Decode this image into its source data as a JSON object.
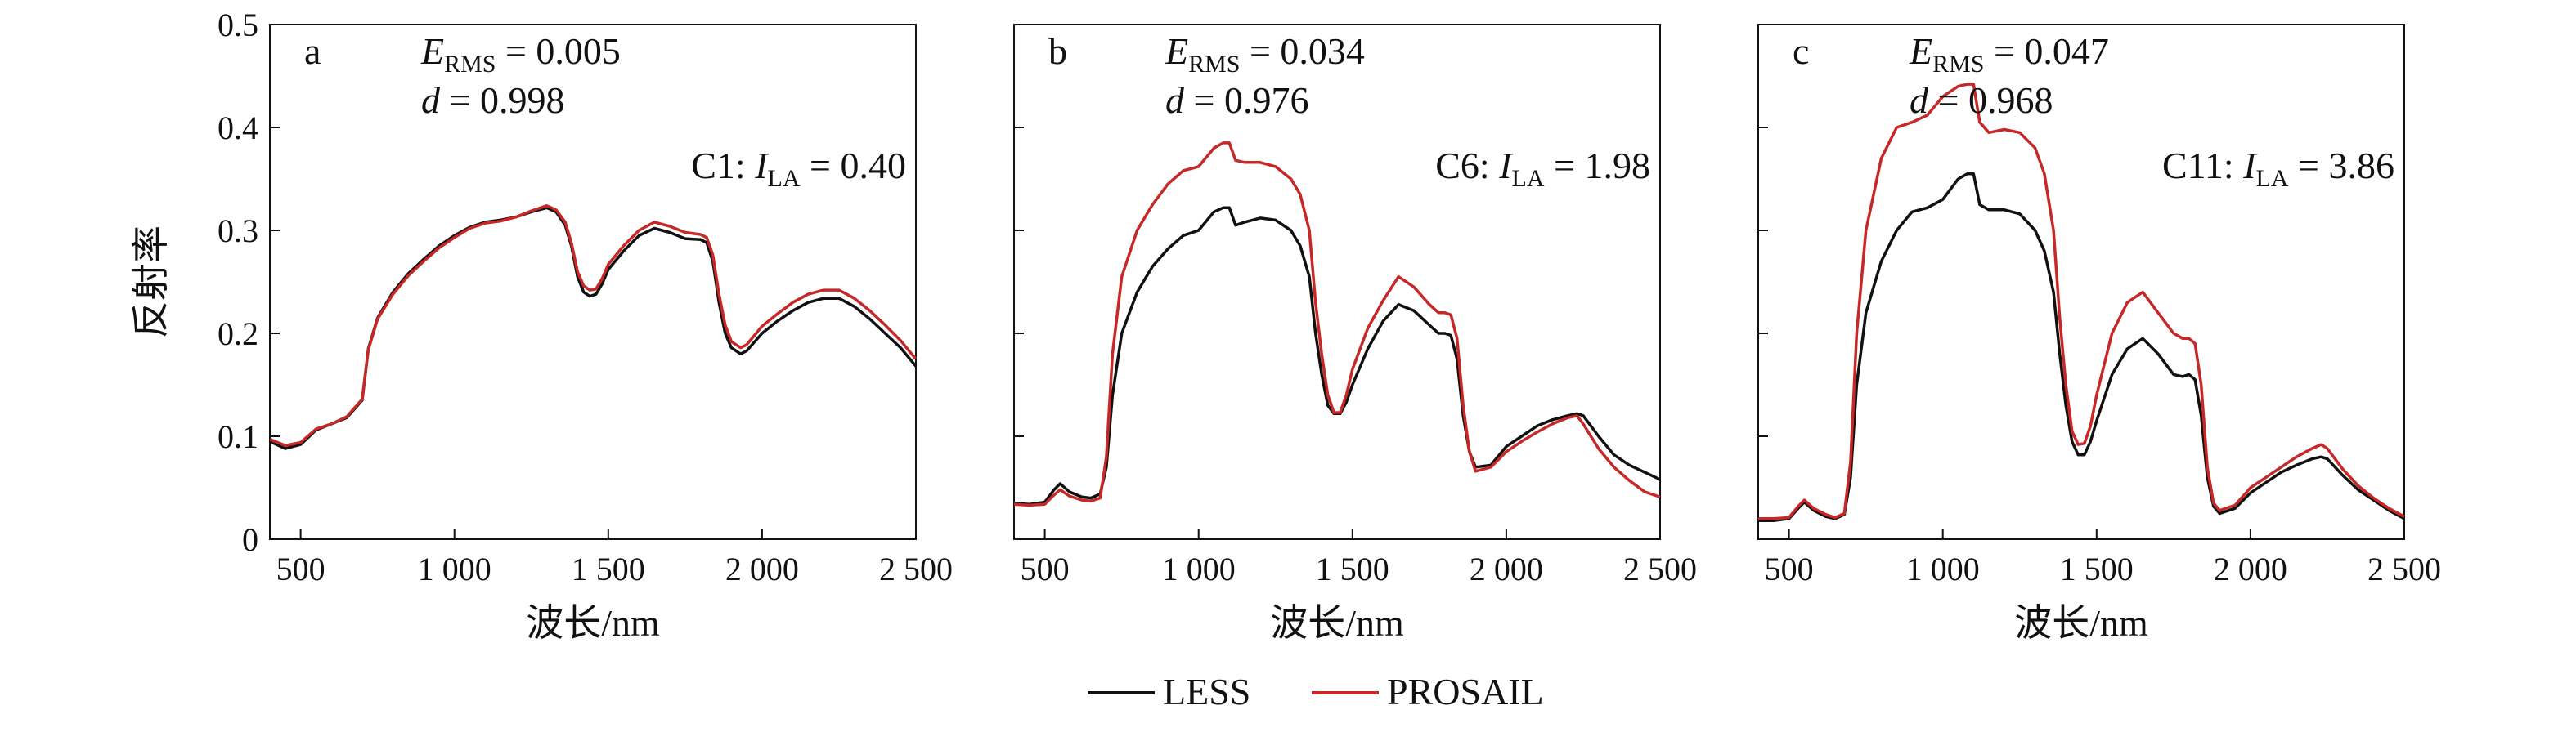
{
  "chart_data": [
    {
      "type": "line",
      "panel_label": "a",
      "xlabel": "波长/nm",
      "ylabel": "反射率",
      "xlim": [
        400,
        2500
      ],
      "ylim": [
        0,
        0.5
      ],
      "xticks": [
        500,
        1000,
        1500,
        2000,
        2500
      ],
      "xtick_labels": [
        "500",
        "1 000",
        "1 500",
        "2 000",
        "2 500"
      ],
      "yticks": [
        0,
        0.1,
        0.2,
        0.3,
        0.4,
        0.5
      ],
      "ytick_labels": [
        "0",
        "0.1",
        "0.2",
        "0.3",
        "0.4",
        "0.5"
      ],
      "grid": false,
      "annotations": {
        "erms_sym": "E",
        "erms_sub": "RMS",
        "erms_value": " = 0.005",
        "d_sym": "d",
        "d_value": " = 0.998",
        "case_prefix": "C1: ",
        "ila_sym": "I",
        "ila_sub": "LA",
        "ila_value": " = 0.40"
      },
      "x": [
        400,
        450,
        500,
        550,
        600,
        650,
        700,
        720,
        750,
        800,
        850,
        900,
        950,
        1000,
        1050,
        1100,
        1150,
        1200,
        1250,
        1300,
        1330,
        1360,
        1380,
        1400,
        1420,
        1440,
        1460,
        1480,
        1500,
        1550,
        1600,
        1650,
        1700,
        1750,
        1800,
        1820,
        1840,
        1860,
        1880,
        1900,
        1930,
        1950,
        2000,
        2050,
        2100,
        2150,
        2200,
        2250,
        2300,
        2350,
        2400,
        2450,
        2500
      ],
      "series": [
        {
          "name": "LESS",
          "color": "#111111",
          "values": [
            0.095,
            0.088,
            0.092,
            0.106,
            0.112,
            0.118,
            0.135,
            0.185,
            0.215,
            0.24,
            0.258,
            0.272,
            0.285,
            0.295,
            0.303,
            0.308,
            0.31,
            0.313,
            0.318,
            0.322,
            0.318,
            0.305,
            0.285,
            0.255,
            0.24,
            0.236,
            0.238,
            0.248,
            0.262,
            0.28,
            0.295,
            0.302,
            0.298,
            0.292,
            0.291,
            0.288,
            0.27,
            0.23,
            0.2,
            0.186,
            0.18,
            0.183,
            0.2,
            0.212,
            0.222,
            0.23,
            0.234,
            0.234,
            0.226,
            0.214,
            0.2,
            0.186,
            0.168
          ]
        },
        {
          "name": "PROSAIL",
          "color": "#c62828",
          "values": [
            0.097,
            0.091,
            0.094,
            0.107,
            0.112,
            0.119,
            0.136,
            0.184,
            0.214,
            0.238,
            0.256,
            0.27,
            0.283,
            0.293,
            0.302,
            0.307,
            0.309,
            0.313,
            0.319,
            0.324,
            0.32,
            0.308,
            0.288,
            0.26,
            0.246,
            0.242,
            0.243,
            0.253,
            0.267,
            0.285,
            0.3,
            0.308,
            0.304,
            0.298,
            0.296,
            0.293,
            0.276,
            0.238,
            0.208,
            0.192,
            0.186,
            0.189,
            0.207,
            0.219,
            0.23,
            0.238,
            0.242,
            0.242,
            0.234,
            0.222,
            0.208,
            0.193,
            0.175
          ]
        }
      ]
    },
    {
      "type": "line",
      "panel_label": "b",
      "xlabel": "波长/nm",
      "ylabel": "",
      "xlim": [
        400,
        2500
      ],
      "ylim": [
        0,
        0.5
      ],
      "xticks": [
        500,
        1000,
        1500,
        2000,
        2500
      ],
      "xtick_labels": [
        "500",
        "1 000",
        "1 500",
        "2 000",
        "2 500"
      ],
      "yticks": [
        0,
        0.1,
        0.2,
        0.3,
        0.4,
        0.5
      ],
      "ytick_labels": [],
      "grid": false,
      "annotations": {
        "erms_sym": "E",
        "erms_sub": "RMS",
        "erms_value": " = 0.034",
        "d_sym": "d",
        "d_value": " = 0.976",
        "case_prefix": "C6: ",
        "ila_sym": "I",
        "ila_sub": "LA",
        "ila_value": " = 1.98"
      },
      "x": [
        400,
        450,
        500,
        530,
        550,
        580,
        620,
        650,
        680,
        700,
        720,
        750,
        800,
        850,
        900,
        950,
        1000,
        1050,
        1080,
        1100,
        1120,
        1150,
        1200,
        1250,
        1300,
        1330,
        1360,
        1380,
        1400,
        1420,
        1440,
        1460,
        1480,
        1500,
        1550,
        1600,
        1650,
        1700,
        1750,
        1780,
        1800,
        1820,
        1840,
        1860,
        1880,
        1900,
        1950,
        2000,
        2050,
        2100,
        2150,
        2200,
        2230,
        2250,
        2300,
        2350,
        2400,
        2450,
        2500
      ],
      "series": [
        {
          "name": "LESS",
          "color": "#111111",
          "values": [
            0.035,
            0.034,
            0.036,
            0.048,
            0.054,
            0.046,
            0.041,
            0.04,
            0.044,
            0.07,
            0.14,
            0.2,
            0.24,
            0.265,
            0.282,
            0.295,
            0.3,
            0.318,
            0.322,
            0.322,
            0.305,
            0.308,
            0.312,
            0.31,
            0.3,
            0.285,
            0.255,
            0.2,
            0.16,
            0.13,
            0.122,
            0.122,
            0.133,
            0.15,
            0.185,
            0.212,
            0.228,
            0.222,
            0.208,
            0.2,
            0.2,
            0.198,
            0.175,
            0.12,
            0.085,
            0.07,
            0.072,
            0.09,
            0.1,
            0.11,
            0.116,
            0.12,
            0.122,
            0.12,
            0.1,
            0.082,
            0.072,
            0.065,
            0.058
          ]
        },
        {
          "name": "PROSAIL",
          "color": "#c62828",
          "values": [
            0.034,
            0.033,
            0.034,
            0.043,
            0.048,
            0.042,
            0.038,
            0.037,
            0.04,
            0.08,
            0.18,
            0.255,
            0.3,
            0.325,
            0.345,
            0.358,
            0.362,
            0.38,
            0.385,
            0.385,
            0.368,
            0.366,
            0.366,
            0.362,
            0.35,
            0.335,
            0.3,
            0.23,
            0.18,
            0.14,
            0.123,
            0.123,
            0.14,
            0.165,
            0.205,
            0.232,
            0.255,
            0.245,
            0.228,
            0.22,
            0.22,
            0.218,
            0.195,
            0.13,
            0.085,
            0.066,
            0.07,
            0.085,
            0.095,
            0.104,
            0.112,
            0.118,
            0.12,
            0.112,
            0.088,
            0.07,
            0.057,
            0.046,
            0.041
          ]
        }
      ]
    },
    {
      "type": "line",
      "panel_label": "c",
      "xlabel": "波长/nm",
      "ylabel": "",
      "xlim": [
        400,
        2500
      ],
      "ylim": [
        0,
        0.5
      ],
      "xticks": [
        500,
        1000,
        1500,
        2000,
        2500
      ],
      "xtick_labels": [
        "500",
        "1 000",
        "1 500",
        "2 000",
        "2 500"
      ],
      "yticks": [
        0,
        0.1,
        0.2,
        0.3,
        0.4,
        0.5
      ],
      "ytick_labels": [],
      "grid": false,
      "annotations": {
        "erms_sym": "E",
        "erms_sub": "RMS",
        "erms_value": " = 0.047",
        "d_sym": "d",
        "d_value": " = 0.968",
        "case_prefix": "C11: ",
        "ila_sym": "I",
        "ila_sub": "LA",
        "ila_value": " = 3.86"
      },
      "x": [
        400,
        450,
        500,
        530,
        550,
        580,
        620,
        650,
        680,
        700,
        720,
        750,
        800,
        850,
        900,
        950,
        1000,
        1050,
        1080,
        1100,
        1120,
        1150,
        1200,
        1250,
        1300,
        1330,
        1360,
        1380,
        1400,
        1420,
        1440,
        1460,
        1480,
        1500,
        1550,
        1600,
        1650,
        1700,
        1750,
        1780,
        1800,
        1820,
        1840,
        1860,
        1880,
        1900,
        1950,
        2000,
        2050,
        2100,
        2150,
        2200,
        2230,
        2250,
        2300,
        2350,
        2400,
        2450,
        2500
      ],
      "series": [
        {
          "name": "LESS",
          "color": "#111111",
          "values": [
            0.018,
            0.018,
            0.02,
            0.03,
            0.036,
            0.028,
            0.022,
            0.02,
            0.024,
            0.06,
            0.15,
            0.22,
            0.27,
            0.3,
            0.318,
            0.322,
            0.33,
            0.35,
            0.355,
            0.355,
            0.325,
            0.32,
            0.32,
            0.316,
            0.3,
            0.28,
            0.24,
            0.18,
            0.13,
            0.095,
            0.082,
            0.082,
            0.095,
            0.115,
            0.16,
            0.185,
            0.195,
            0.18,
            0.16,
            0.158,
            0.16,
            0.155,
            0.12,
            0.06,
            0.032,
            0.025,
            0.03,
            0.045,
            0.055,
            0.065,
            0.072,
            0.078,
            0.08,
            0.078,
            0.062,
            0.048,
            0.038,
            0.028,
            0.02
          ]
        },
        {
          "name": "PROSAIL",
          "color": "#c62828",
          "values": [
            0.02,
            0.02,
            0.021,
            0.032,
            0.038,
            0.03,
            0.024,
            0.021,
            0.025,
            0.075,
            0.2,
            0.3,
            0.37,
            0.4,
            0.405,
            0.412,
            0.43,
            0.44,
            0.442,
            0.442,
            0.405,
            0.395,
            0.398,
            0.395,
            0.38,
            0.355,
            0.3,
            0.215,
            0.15,
            0.105,
            0.092,
            0.093,
            0.11,
            0.14,
            0.2,
            0.23,
            0.24,
            0.22,
            0.2,
            0.195,
            0.195,
            0.19,
            0.15,
            0.07,
            0.035,
            0.028,
            0.033,
            0.05,
            0.06,
            0.07,
            0.08,
            0.088,
            0.092,
            0.088,
            0.068,
            0.052,
            0.04,
            0.03,
            0.022
          ]
        }
      ]
    }
  ],
  "legend": {
    "placement": "bottom-center",
    "entries": [
      {
        "label": "LESS",
        "color": "#111111"
      },
      {
        "label": "PROSAIL",
        "color": "#c62828"
      }
    ]
  }
}
